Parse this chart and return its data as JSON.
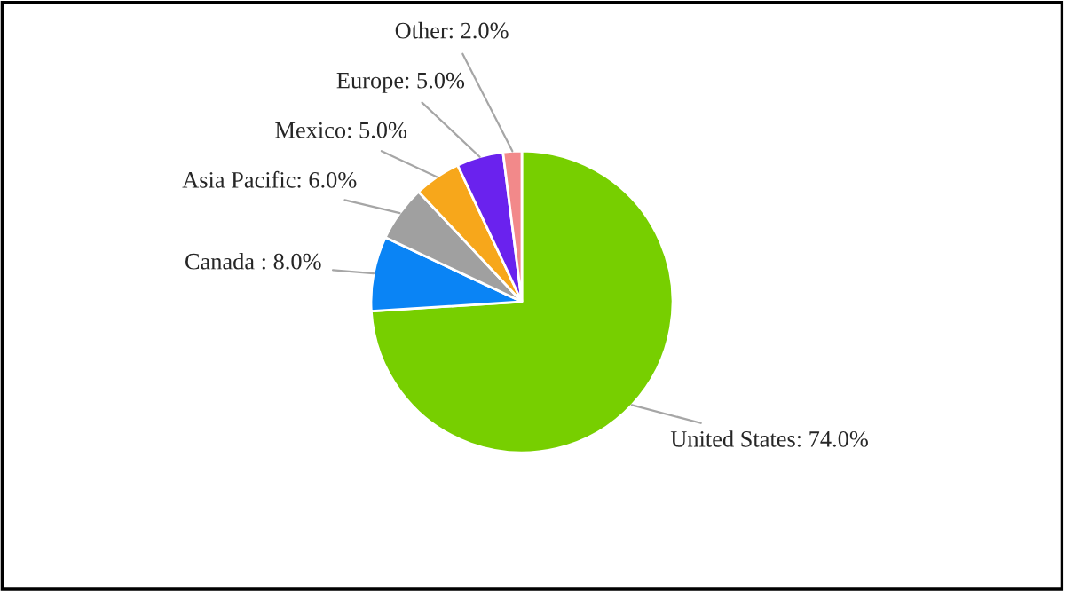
{
  "chart_data": {
    "type": "pie",
    "categories": [
      "United States: 74.0%",
      "Canada : 8.0%",
      "Asia Pacific: 6.0%",
      "Mexico: 5.0%",
      "Europe: 5.0%",
      "Other: 2.0%"
    ],
    "values": [
      74.0,
      8.0,
      6.0,
      5.0,
      5.0,
      2.0
    ],
    "colors": [
      "#77cf00",
      "#0a84f5",
      "#a0a0a0",
      "#f7a71b",
      "#6a22ee",
      "#f2898a"
    ]
  }
}
